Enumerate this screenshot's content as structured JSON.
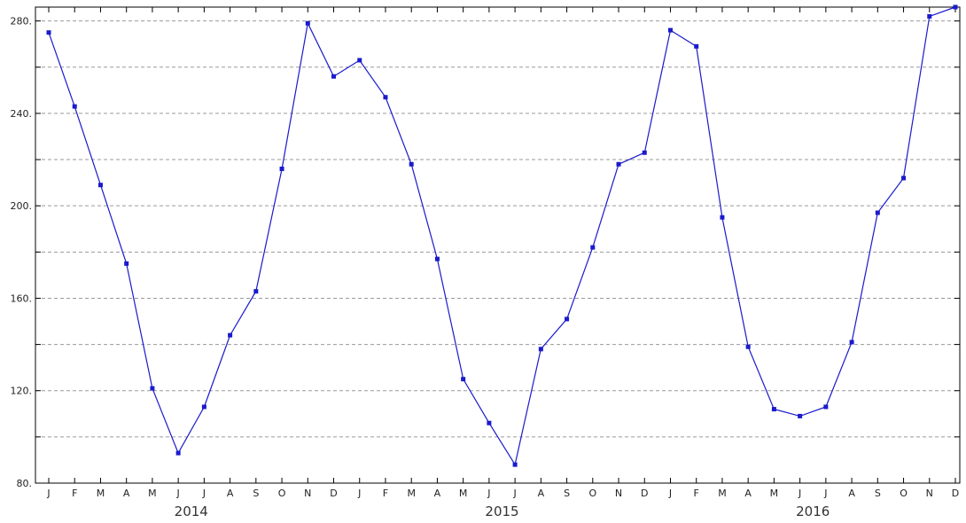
{
  "chart_data": {
    "type": "line",
    "title": "",
    "xlabel": "",
    "ylabel": "",
    "ylim": [
      80,
      286
    ],
    "yticks": [
      "80.",
      "120.",
      "160.",
      "200.",
      "240.",
      "280."
    ],
    "y_gridlines": [
      100,
      120,
      140,
      160,
      180,
      200,
      220,
      240,
      260,
      280
    ],
    "grid": "horizontal dashed",
    "month_labels": [
      "J",
      "F",
      "M",
      "A",
      "M",
      "J",
      "J",
      "A",
      "S",
      "O",
      "N",
      "D",
      "J",
      "F",
      "M",
      "A",
      "M",
      "J",
      "J",
      "A",
      "S",
      "O",
      "N",
      "D",
      "J",
      "F",
      "M",
      "A",
      "M",
      "J",
      "J",
      "A",
      "S",
      "O",
      "N",
      "D"
    ],
    "year_labels": [
      "2014",
      "2015",
      "2016"
    ],
    "series": [
      {
        "color": "#1a1acc",
        "marker": "square",
        "values": [
          275,
          243,
          209,
          175,
          121,
          93,
          113,
          144,
          163,
          216,
          279,
          256,
          263,
          247,
          218,
          177,
          125,
          106,
          88,
          138,
          151,
          182,
          218,
          223,
          276,
          269,
          195,
          139,
          112,
          109,
          113,
          141,
          197,
          212,
          282,
          286
        ]
      }
    ]
  }
}
